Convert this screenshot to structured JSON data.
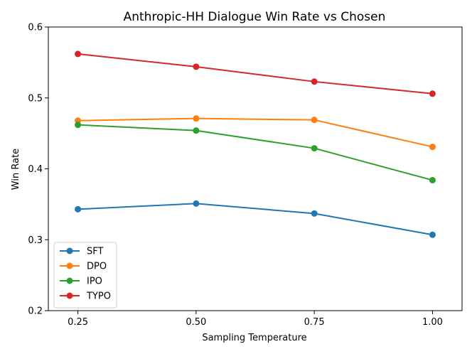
{
  "chart_data": {
    "type": "line",
    "title": "Anthropic-HH Dialogue Win Rate vs Chosen",
    "xlabel": "Sampling Temperature",
    "ylabel": "Win Rate",
    "x": [
      0.25,
      0.5,
      0.75,
      1.0
    ],
    "x_tick_labels": [
      "0.25",
      "0.50",
      "0.75",
      "1.00"
    ],
    "y_ticks": [
      0.2,
      0.3,
      0.4,
      0.5,
      0.6
    ],
    "y_tick_labels": [
      "0.2",
      "0.3",
      "0.4",
      "0.5",
      "0.6"
    ],
    "xlim": [
      0.1875,
      1.0625
    ],
    "ylim": [
      0.2,
      0.6
    ],
    "grid": false,
    "legend_position": "lower-left",
    "series": [
      {
        "name": "SFT",
        "color": "#1f77b4",
        "values": [
          0.343,
          0.351,
          0.337,
          0.307
        ]
      },
      {
        "name": "DPO",
        "color": "#ff7f0e",
        "values": [
          0.468,
          0.471,
          0.469,
          0.431
        ]
      },
      {
        "name": "IPO",
        "color": "#2ca02c",
        "values": [
          0.462,
          0.454,
          0.429,
          0.384
        ]
      },
      {
        "name": "TYPO",
        "color": "#d62728",
        "values": [
          0.562,
          0.544,
          0.523,
          0.506
        ]
      }
    ]
  }
}
